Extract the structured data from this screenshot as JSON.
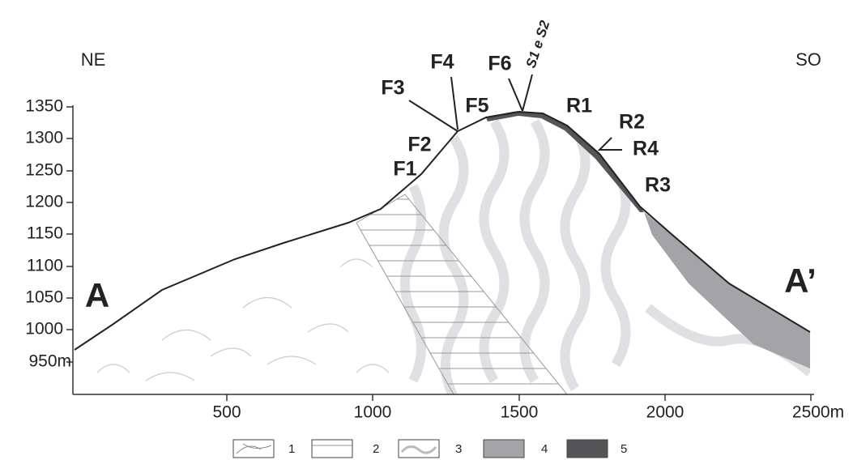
{
  "header": {
    "left": "NE",
    "right": "SO"
  },
  "section": {
    "start": "A",
    "end": "A’"
  },
  "y_axis": {
    "labels": [
      1350,
      1300,
      1250,
      1200,
      1150,
      1100,
      1050,
      1000,
      "950m"
    ]
  },
  "x_axis": {
    "labels": [
      500,
      1000,
      1500,
      2000,
      "2500m"
    ]
  },
  "points": [
    "F1",
    "F2",
    "F3",
    "F4",
    "F5",
    "F6",
    "S1 e S2",
    "R1",
    "R2",
    "R3",
    "R4"
  ],
  "legend": [
    "1",
    "2",
    "3",
    "4",
    "5"
  ]
}
